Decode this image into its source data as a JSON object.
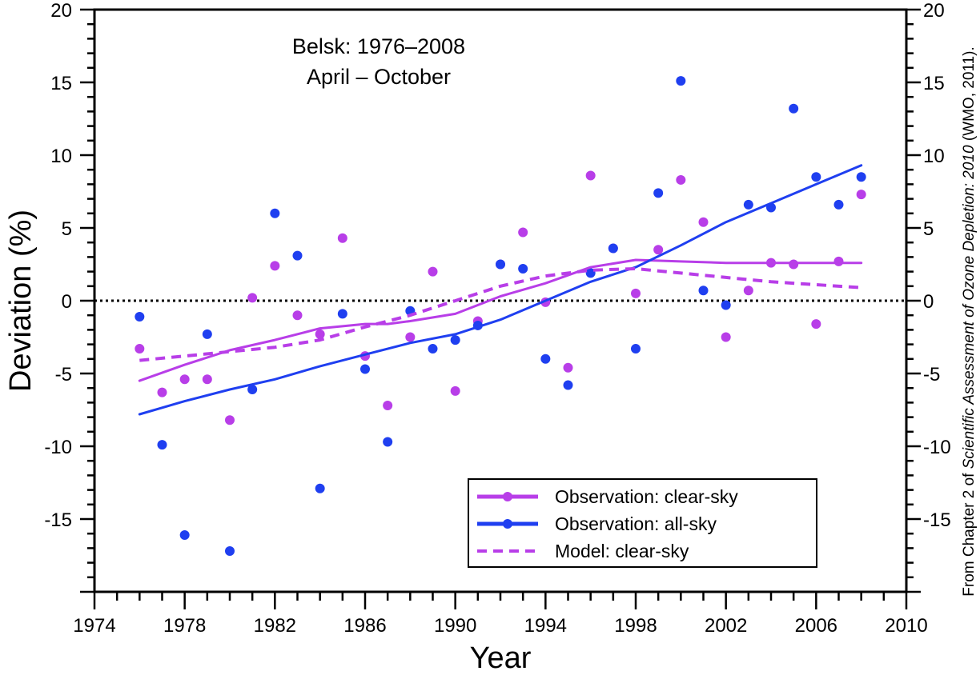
{
  "chart_data": {
    "type": "scatter",
    "xlabel": "Year",
    "ylabel": "Deviation (%)",
    "xlim": [
      1974,
      2010
    ],
    "ylim": [
      -20,
      20
    ],
    "x_ticks": [
      "1974",
      "1978",
      "1982",
      "1986",
      "1990",
      "1994",
      "1998",
      "2002",
      "2006",
      "2010"
    ],
    "x_tick_values": [
      1974,
      1978,
      1982,
      1986,
      1990,
      1994,
      1998,
      2002,
      2006,
      2010
    ],
    "y_ticks": [
      "20",
      "15",
      "10",
      "5",
      "0",
      "-5",
      "-10",
      "-15"
    ],
    "y_tick_values": [
      20,
      15,
      10,
      5,
      0,
      -5,
      -10,
      -15
    ],
    "annotation_lines": [
      "Belsk: 1976–2008",
      "April – October"
    ],
    "zero_line": true,
    "legend": {
      "position": "bottom-right",
      "entries": [
        "Observation: clear-sky",
        "Observation: all-sky",
        "Model: clear-sky"
      ]
    },
    "credit_parts": [
      "From Chapter 2 of ",
      "Scientific Assessment of Ozone Depletion: 2010",
      " (WMO, 2011)."
    ],
    "series": [
      {
        "name": "Observation: clear-sky",
        "color": "#b83ee8",
        "style": "points",
        "x": [
          1976,
          1977,
          1978,
          1979,
          1980,
          1981,
          1982,
          1983,
          1984,
          1985,
          1986,
          1987,
          1988,
          1989,
          1990,
          1991,
          1992,
          1993,
          1994,
          1995,
          1996,
          1997,
          1998,
          1999,
          2000,
          2001,
          2002,
          2003,
          2004,
          2005,
          2006,
          2007,
          2008
        ],
        "y": [
          -3.3,
          -6.3,
          -5.4,
          -5.4,
          -8.2,
          0.2,
          2.4,
          -1.0,
          -2.3,
          4.3,
          -3.8,
          -7.2,
          -2.5,
          2.0,
          -6.2,
          -1.4,
          2.5,
          4.7,
          -0.1,
          -4.6,
          8.6,
          3.6,
          0.5,
          3.5,
          8.3,
          5.4,
          -2.5,
          0.7,
          2.6,
          2.5,
          -1.6,
          2.7,
          7.3
        ]
      },
      {
        "name": "Observation: all-sky",
        "color": "#1f3ff0",
        "style": "points",
        "x": [
          1976,
          1977,
          1978,
          1979,
          1980,
          1981,
          1982,
          1983,
          1984,
          1985,
          1986,
          1987,
          1988,
          1989,
          1990,
          1991,
          1992,
          1993,
          1994,
          1995,
          1996,
          1997,
          1998,
          1999,
          2000,
          2001,
          2002,
          2003,
          2004,
          2005,
          2006,
          2007,
          2008
        ],
        "y": [
          -1.1,
          -9.9,
          -16.1,
          -2.3,
          -17.2,
          -6.1,
          6.0,
          3.1,
          -12.9,
          -0.9,
          -4.7,
          -9.7,
          -0.7,
          -3.3,
          -2.7,
          -1.7,
          2.5,
          2.2,
          -4.0,
          -5.8,
          1.9,
          3.6,
          -3.3,
          7.4,
          15.1,
          0.7,
          -0.3,
          6.6,
          6.4,
          13.2,
          8.5,
          6.6,
          8.5
        ]
      },
      {
        "name": "Observation: clear-sky trend",
        "color": "#b83ee8",
        "style": "solid",
        "x": [
          1976,
          1978,
          1980,
          1982,
          1984,
          1986,
          1987,
          1988,
          1990,
          1992,
          1994,
          1996,
          1998,
          2000,
          2002,
          2004,
          2006,
          2008
        ],
        "y": [
          -5.5,
          -4.4,
          -3.4,
          -2.7,
          -1.9,
          -1.6,
          -1.6,
          -1.4,
          -0.9,
          0.3,
          1.2,
          2.3,
          2.8,
          2.7,
          2.6,
          2.6,
          2.6,
          2.6
        ]
      },
      {
        "name": "Observation: all-sky trend",
        "color": "#1f3ff0",
        "style": "solid",
        "x": [
          1976,
          1978,
          1980,
          1982,
          1984,
          1986,
          1988,
          1990,
          1992,
          1994,
          1996,
          1998,
          2000,
          2002,
          2004,
          2006,
          2008
        ],
        "y": [
          -7.8,
          -6.9,
          -6.1,
          -5.4,
          -4.5,
          -3.7,
          -2.9,
          -2.3,
          -1.3,
          0.0,
          1.3,
          2.3,
          3.8,
          5.4,
          6.7,
          8.0,
          9.3
        ]
      },
      {
        "name": "Model: clear-sky",
        "color": "#b83ee8",
        "style": "dashed",
        "x": [
          1976,
          1978,
          1980,
          1982,
          1984,
          1986,
          1988,
          1990,
          1992,
          1994,
          1996,
          1998,
          2000,
          2002,
          2004,
          2006,
          2008
        ],
        "y": [
          -4.1,
          -3.8,
          -3.5,
          -3.2,
          -2.7,
          -1.8,
          -1.0,
          0.0,
          1.0,
          1.7,
          2.1,
          2.2,
          1.9,
          1.6,
          1.3,
          1.1,
          0.9
        ]
      }
    ]
  }
}
